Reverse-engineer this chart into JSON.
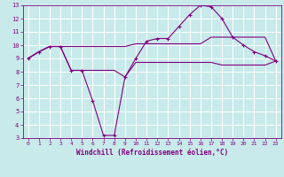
{
  "xlabel": "Windchill (Refroidissement éolien,°C)",
  "background_color": "#c8eaea",
  "grid_color": "#ffffff",
  "line_color": "#800080",
  "xlim": [
    -0.5,
    23.5
  ],
  "ylim": [
    3,
    13
  ],
  "xticks": [
    0,
    1,
    2,
    3,
    4,
    5,
    6,
    7,
    8,
    9,
    10,
    11,
    12,
    13,
    14,
    15,
    16,
    17,
    18,
    19,
    20,
    21,
    22,
    23
  ],
  "yticks": [
    3,
    4,
    5,
    6,
    7,
    8,
    9,
    10,
    11,
    12,
    13
  ],
  "line1_x": [
    0,
    1,
    2,
    3,
    4,
    5,
    6,
    7,
    8,
    9,
    10,
    11,
    12,
    13,
    14,
    15,
    16,
    17,
    18,
    19,
    20,
    21,
    22,
    23
  ],
  "line1_y": [
    9.0,
    9.5,
    9.9,
    9.9,
    8.1,
    8.1,
    5.8,
    3.2,
    3.2,
    7.6,
    9.0,
    10.3,
    10.5,
    10.5,
    11.4,
    12.3,
    13.0,
    12.9,
    12.0,
    10.6,
    10.0,
    9.5,
    9.2,
    8.8
  ],
  "line2_x": [
    0,
    1,
    2,
    3,
    4,
    5,
    6,
    7,
    8,
    9,
    10,
    11,
    12,
    13,
    14,
    15,
    16,
    17,
    18,
    19,
    20,
    21,
    22,
    23
  ],
  "line2_y": [
    9.0,
    9.5,
    9.9,
    9.9,
    9.9,
    9.9,
    9.9,
    9.9,
    9.9,
    9.9,
    10.1,
    10.1,
    10.1,
    10.1,
    10.1,
    10.1,
    10.1,
    10.6,
    10.6,
    10.6,
    10.6,
    10.6,
    10.6,
    8.8
  ],
  "line3_x": [
    0,
    1,
    2,
    3,
    4,
    5,
    6,
    7,
    8,
    9,
    10,
    11,
    12,
    13,
    14,
    15,
    16,
    17,
    18,
    19,
    20,
    21,
    22,
    23
  ],
  "line3_y": [
    9.0,
    9.5,
    9.9,
    9.9,
    8.1,
    8.1,
    8.1,
    8.1,
    8.1,
    7.6,
    8.7,
    8.7,
    8.7,
    8.7,
    8.7,
    8.7,
    8.7,
    8.7,
    8.5,
    8.5,
    8.5,
    8.5,
    8.5,
    8.8
  ]
}
